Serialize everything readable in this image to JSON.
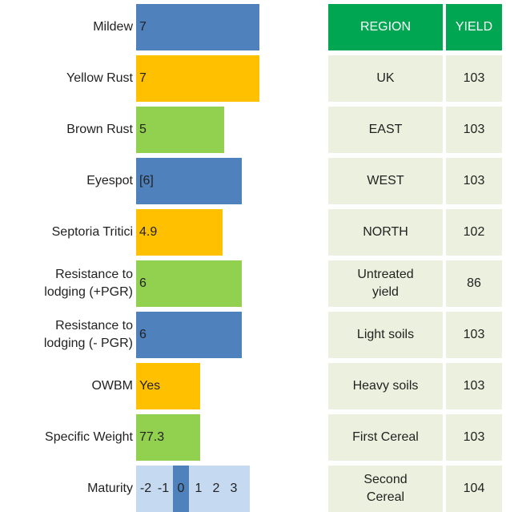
{
  "ratings": [
    {
      "label": "Mildew",
      "value": 7,
      "color": "#4f81bd"
    },
    {
      "label": "Yellow Rust",
      "value": 7,
      "color": "#ffc000"
    },
    {
      "label": "Brown Rust",
      "value": 5,
      "color": "#92d050"
    },
    {
      "label": "Eyespot",
      "value": 6,
      "value_label": "[6]",
      "color": "#4f81bd"
    },
    {
      "label": "Septoria Tritici",
      "value": 4.9,
      "color": "#ffc000"
    },
    {
      "label": "Resistance to lodging (+PGR)",
      "value": 6,
      "color": "#92d050"
    },
    {
      "label": "Resistance to lodging (- PGR)",
      "value": 6,
      "color": "#4f81bd"
    }
  ],
  "other": [
    {
      "label": "OWBM",
      "value": "Yes",
      "color": "#ffc000"
    },
    {
      "label": "Specific Weight",
      "value": 77.3,
      "color": "#92d050"
    }
  ],
  "maturity": {
    "label": "Maturity",
    "scale": [
      -2,
      -1,
      0,
      1,
      2,
      3
    ],
    "value": 0,
    "color": "#c5d9f1",
    "highlight": "#4f81bd"
  },
  "table": {
    "header": [
      "REGION",
      "YIELD"
    ],
    "rows": [
      [
        "UK",
        103
      ],
      [
        "EAST",
        103
      ],
      [
        "WEST",
        103
      ],
      [
        "NORTH",
        102
      ],
      [
        "Untreated yield",
        86
      ],
      [
        "Light soils",
        103
      ],
      [
        "Heavy soils",
        103
      ],
      [
        "First Cereal",
        103
      ],
      [
        "Second Cereal",
        104
      ]
    ]
  }
}
